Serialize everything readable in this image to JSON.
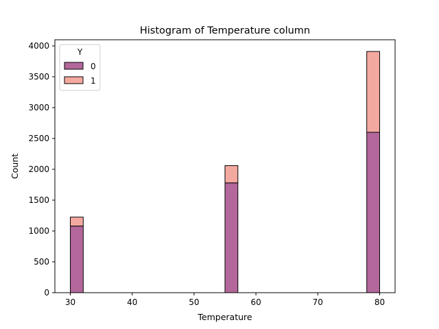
{
  "chart_data": {
    "type": "bar",
    "subtype": "stacked-histogram",
    "title": "Histogram of Temperature column",
    "xlabel": "Temperature",
    "ylabel": "Count",
    "xlim": [
      27.5,
      82.5
    ],
    "ylim": [
      0,
      4100
    ],
    "xticks": [
      30,
      40,
      50,
      60,
      70,
      80
    ],
    "yticks": [
      0,
      500,
      1000,
      1500,
      2000,
      2500,
      3000,
      3500,
      4000
    ],
    "bins": [
      {
        "x0": 30.0,
        "x1": 32.083
      },
      {
        "x0": 55.0,
        "x1": 57.083
      },
      {
        "x0": 77.917,
        "x1": 80.0
      }
    ],
    "series": [
      {
        "name": "0",
        "color": "#b3679b",
        "values": [
          1080,
          1780,
          2600
        ]
      },
      {
        "name": "1",
        "color": "#f4a9a0",
        "values": [
          145,
          280,
          1310
        ]
      }
    ],
    "legend": {
      "title": "Y",
      "placement": "top-left"
    },
    "grid": false
  }
}
